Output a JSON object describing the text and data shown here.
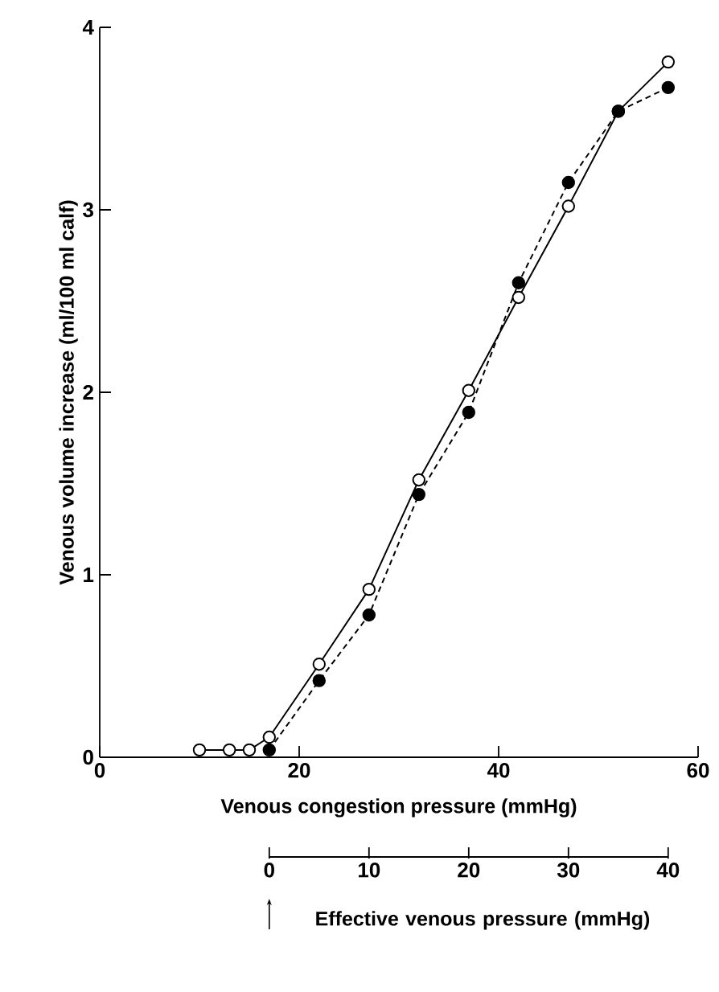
{
  "chart_data": {
    "type": "line",
    "xlabel": "Venous congestion pressure  (mmHg)",
    "ylabel": "Venous volume increase (ml/100 ml calf)",
    "x2label": "Effective venous pressure (mmHg)",
    "xlim": [
      0,
      60
    ],
    "xticks": [
      0,
      20,
      40,
      60
    ],
    "ylim": [
      0,
      4
    ],
    "yticks": [
      0,
      1,
      2,
      3,
      4
    ],
    "x2lim": [
      -17,
      43
    ],
    "x2ticks": [
      0,
      10,
      20,
      30,
      40
    ],
    "marker": "circle",
    "series": [
      {
        "color": "#000000",
        "line_style": "solid",
        "x": [
          10,
          13,
          15,
          17,
          22,
          27,
          32,
          37,
          42,
          47,
          52,
          57
        ],
        "values": [
          0.04,
          0.04,
          0.04,
          0.11,
          0.51,
          0.92,
          1.52,
          2.01,
          2.52,
          3.02,
          3.54,
          3.81
        ]
      },
      {
        "color": "#000000",
        "line_style": "dashed",
        "x": [
          17,
          22,
          27,
          32,
          37,
          42,
          47,
          52,
          57
        ],
        "values": [
          0.04,
          0.42,
          0.78,
          1.44,
          1.89,
          2.6,
          3.15,
          3.54,
          3.67
        ]
      }
    ]
  }
}
